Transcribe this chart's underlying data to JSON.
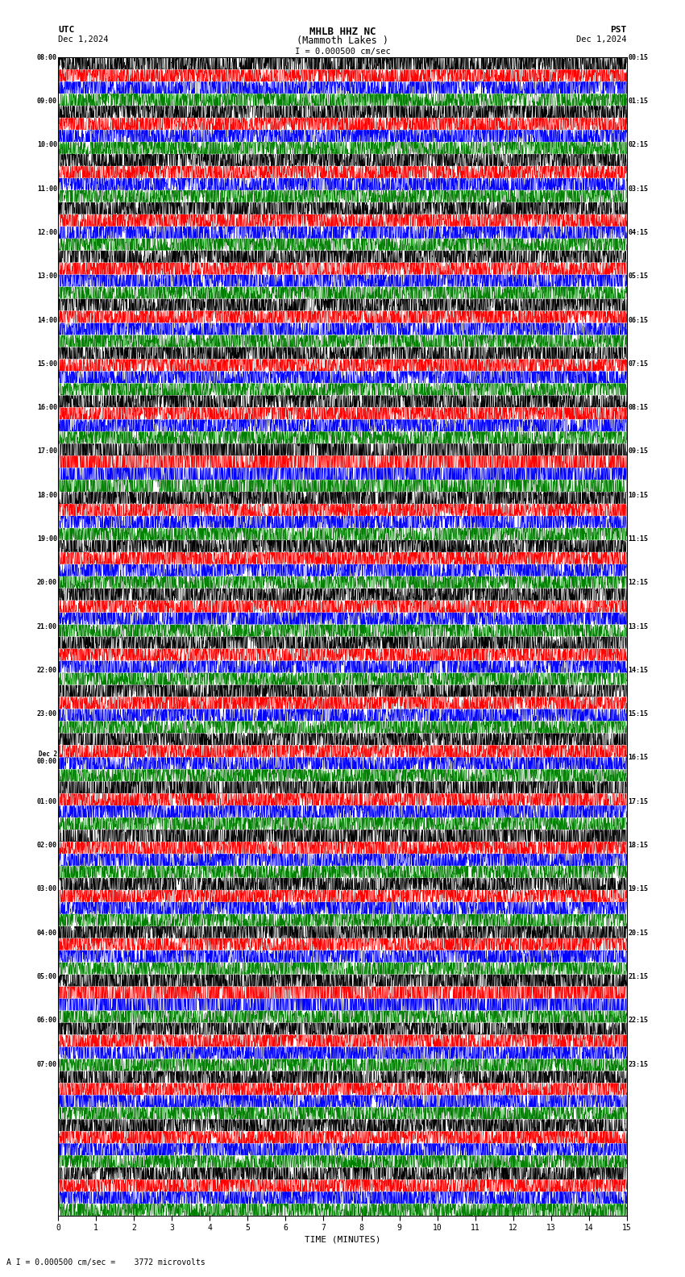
{
  "title_line1": "MHLB HHZ NC",
  "title_line2": "(Mammoth Lakes )",
  "scale_label": "I = 0.000500 cm/sec",
  "utc_label": "UTC",
  "utc_date": "Dec 1,2024",
  "pst_label": "PST",
  "pst_date": "Dec 1,2024",
  "bottom_label": "A I = 0.000500 cm/sec =    3772 microvolts",
  "xlabel": "TIME (MINUTES)",
  "left_times": [
    "08:00",
    "09:00",
    "10:00",
    "11:00",
    "12:00",
    "13:00",
    "14:00",
    "15:00",
    "16:00",
    "17:00",
    "18:00",
    "19:00",
    "20:00",
    "21:00",
    "22:00",
    "23:00",
    "Dec 2\n00:00",
    "01:00",
    "02:00",
    "03:00",
    "04:00",
    "05:00",
    "06:00",
    "07:00"
  ],
  "right_times": [
    "00:15",
    "01:15",
    "02:15",
    "03:15",
    "04:15",
    "05:15",
    "06:15",
    "07:15",
    "08:15",
    "09:15",
    "10:15",
    "11:15",
    "12:15",
    "13:15",
    "14:15",
    "15:15",
    "16:15",
    "17:15",
    "18:15",
    "19:15",
    "20:15",
    "21:15",
    "22:15",
    "23:15"
  ],
  "n_rows": 24,
  "traces_per_row": 4,
  "trace_colors": [
    "black",
    "red",
    "blue",
    "green"
  ],
  "bg_color": "white",
  "grid_color": "#888888",
  "fig_width": 8.5,
  "fig_height": 15.84,
  "dpi": 100,
  "noise_amp_black": 0.018,
  "noise_amp_red": 0.01,
  "noise_amp_blue": 0.013,
  "noise_amp_green": 0.01,
  "n_points": 2700,
  "n_minutes": 15
}
